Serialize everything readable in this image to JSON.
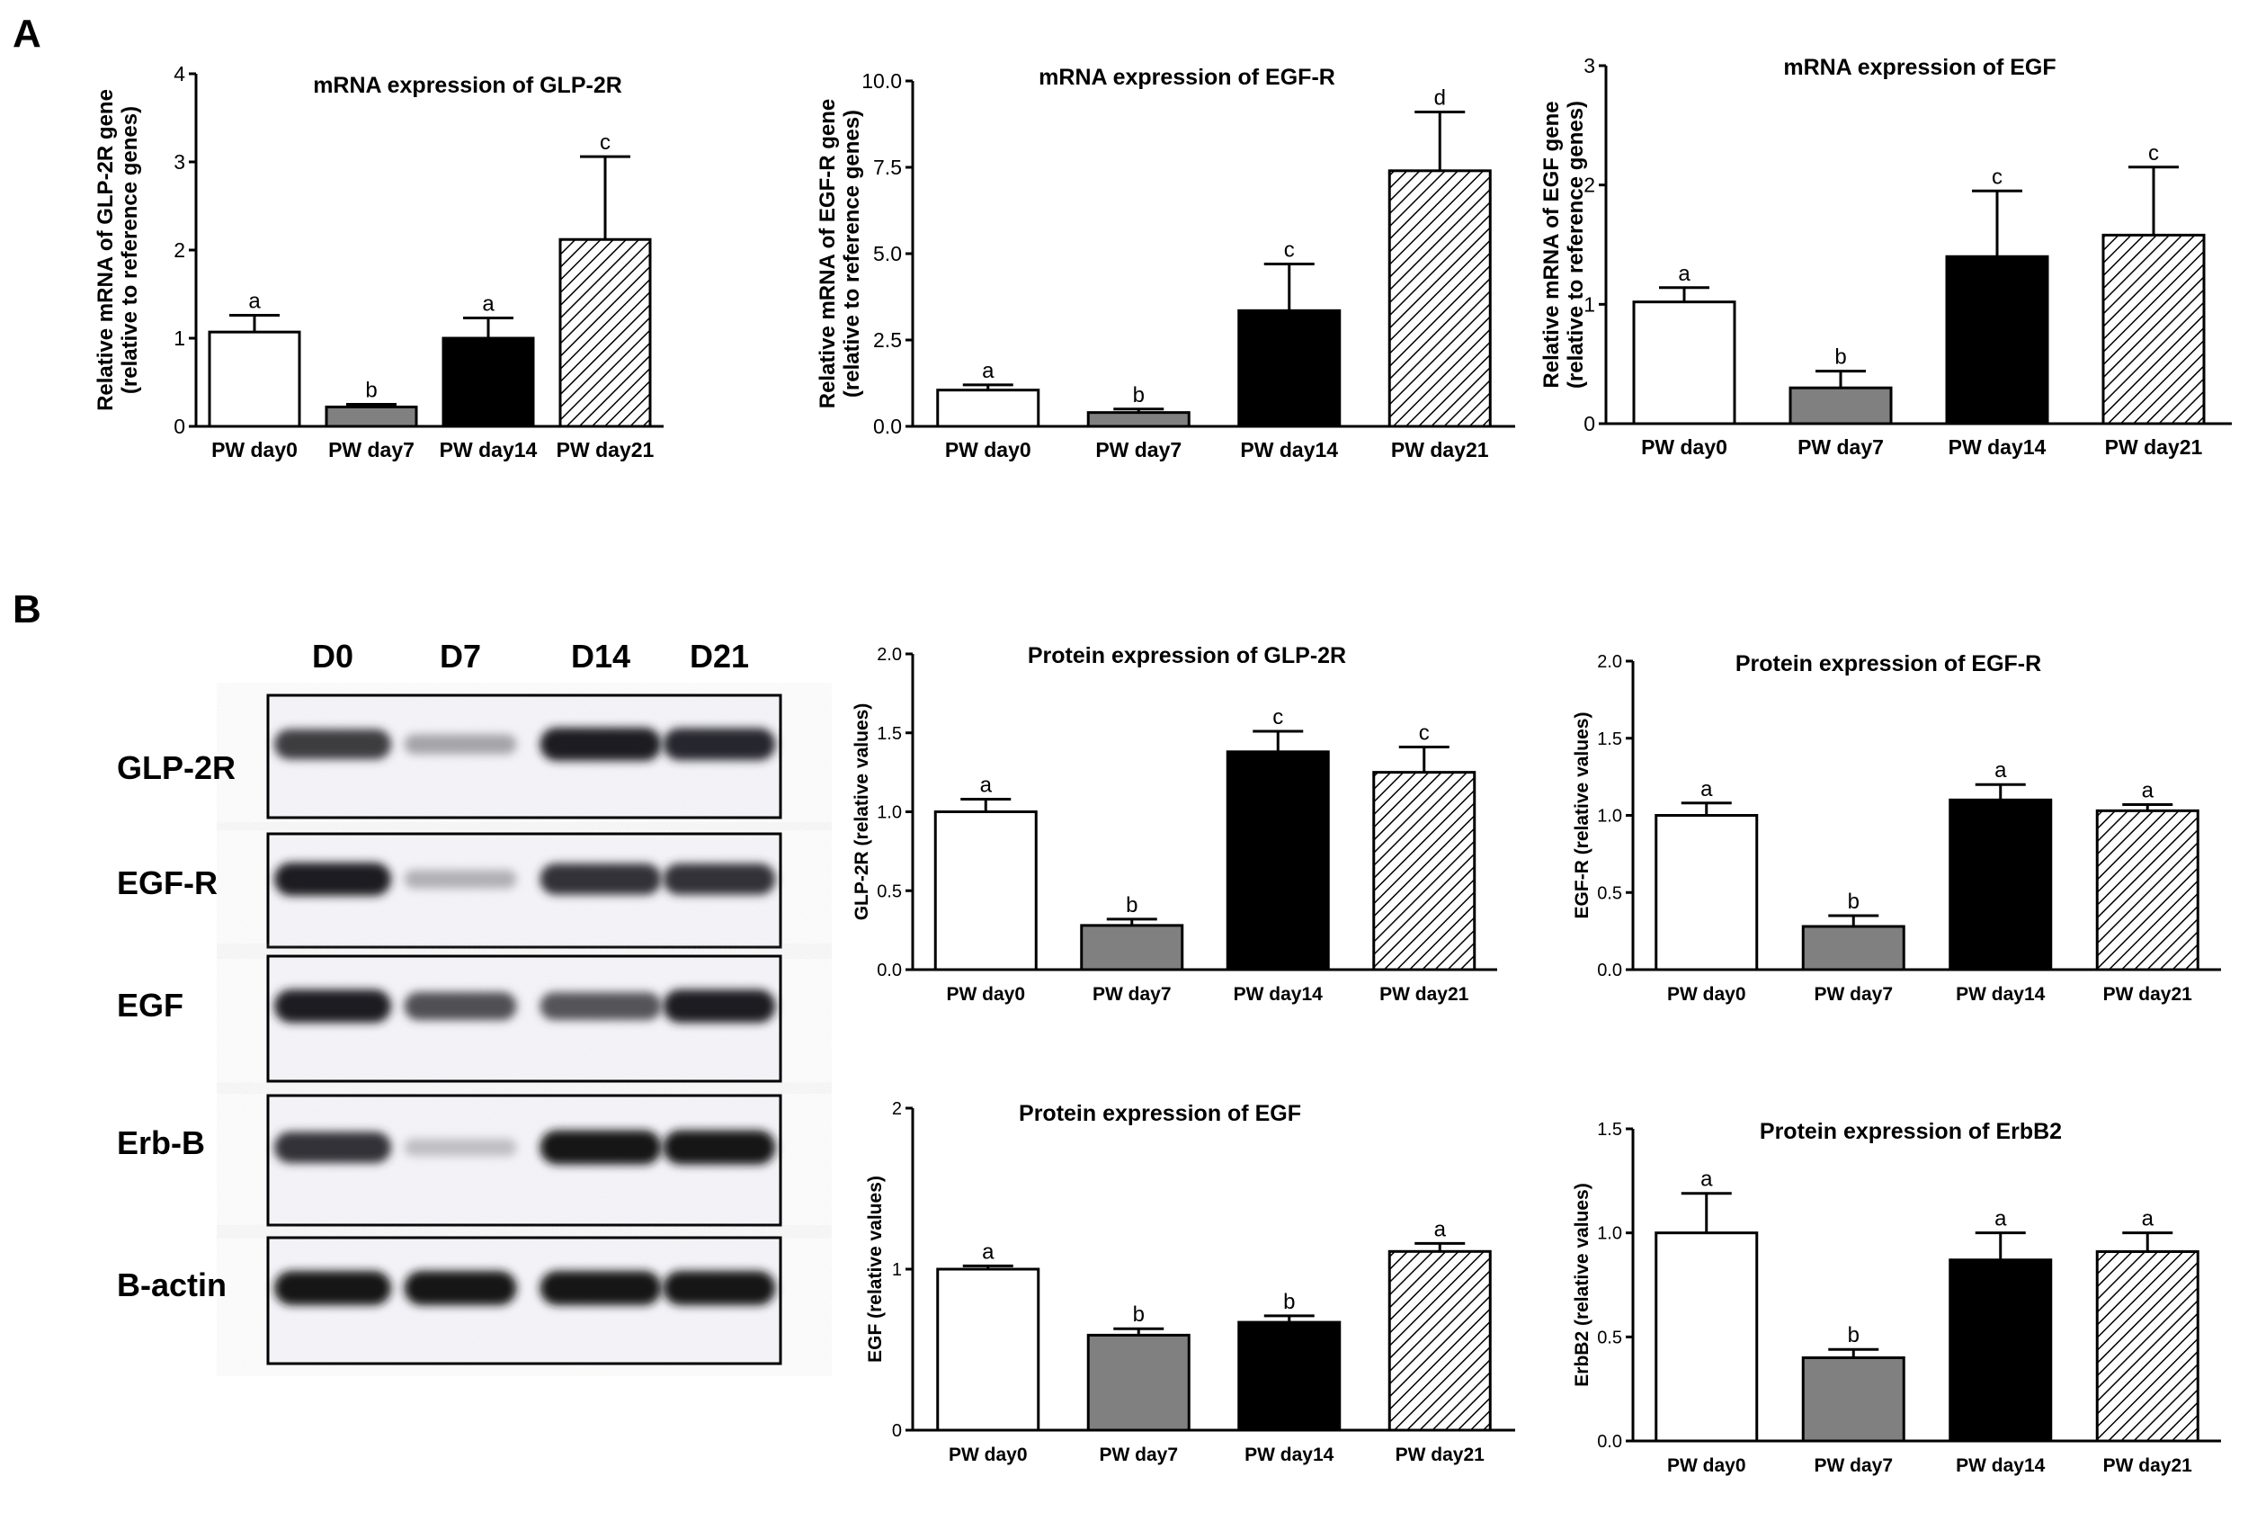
{
  "panel_labels": {
    "A": "A",
    "B": "B"
  },
  "colors": {
    "bar_fill": [
      "#ffffff",
      "#808080",
      "#000000",
      "hatch"
    ],
    "stroke": "#000000"
  },
  "blot": {
    "lanes": [
      "D0",
      "D7",
      "D14",
      "D21"
    ],
    "rows": [
      {
        "label": "GLP-2R",
        "intensity": [
          0.8,
          0.28,
          0.95,
          0.9
        ]
      },
      {
        "label": "EGF-R",
        "intensity": [
          0.95,
          0.22,
          0.85,
          0.85
        ]
      },
      {
        "label": "EGF",
        "intensity": [
          0.95,
          0.7,
          0.68,
          0.95
        ]
      },
      {
        "label": "Erb-B",
        "intensity": [
          0.85,
          0.15,
          1.0,
          1.0
        ]
      },
      {
        "label": "B-actin",
        "intensity": [
          1.0,
          1.0,
          1.0,
          1.0
        ]
      }
    ]
  },
  "chart_data": [
    {
      "type": "bar",
      "title": "mRNA expression of GLP-2R",
      "ylabel_lines": [
        "Relative mRNA of GLP-2R gene",
        "(relative to reference genes)"
      ],
      "categories": [
        "PW day0",
        "PW day7",
        "PW day14",
        "PW day21"
      ],
      "values": [
        1.07,
        0.22,
        1.0,
        2.12
      ],
      "errors": [
        0.19,
        0.03,
        0.23,
        0.94
      ],
      "letters": [
        "a",
        "b",
        "a",
        "c"
      ],
      "ylim": [
        0,
        4
      ],
      "yticks": [
        0,
        1,
        2,
        3,
        4
      ],
      "ytick_labels": [
        "0",
        "1",
        "2",
        "3",
        "4"
      ],
      "legend": "none"
    },
    {
      "type": "bar",
      "title": "mRNA expression of EGF-R",
      "ylabel_lines": [
        "Relative mRNA of EGF-R gene",
        "(relative to reference genes)"
      ],
      "categories": [
        "PW day0",
        "PW day7",
        "PW day14",
        "PW day21"
      ],
      "values": [
        1.05,
        0.4,
        3.35,
        7.4
      ],
      "errors": [
        0.15,
        0.1,
        1.35,
        1.7
      ],
      "letters": [
        "a",
        "b",
        "c",
        "d"
      ],
      "ylim": [
        0,
        10
      ],
      "yticks": [
        0,
        2.5,
        5,
        7.5,
        10
      ],
      "ytick_labels": [
        "0.0",
        "2.5",
        "5.0",
        "7.5",
        "10.0"
      ],
      "legend": "none"
    },
    {
      "type": "bar",
      "title": "mRNA expression of EGF",
      "ylabel_lines": [
        "Relative mRNA of EGF gene",
        "(relative to reference genes)"
      ],
      "categories": [
        "PW day0",
        "PW day7",
        "PW day14",
        "PW day21"
      ],
      "values": [
        1.02,
        0.3,
        1.4,
        1.58
      ],
      "errors": [
        0.12,
        0.14,
        0.55,
        0.57
      ],
      "letters": [
        "a",
        "b",
        "c",
        "c"
      ],
      "ylim": [
        0,
        3
      ],
      "yticks": [
        0,
        1,
        2,
        3
      ],
      "ytick_labels": [
        "0",
        "1",
        "2",
        "3"
      ],
      "legend": "none"
    },
    {
      "type": "bar",
      "title": "Protein expression of GLP-2R",
      "ylabel_lines": [
        "GLP-2R (relative values)"
      ],
      "categories": [
        "PW day0",
        "PW day7",
        "PW day14",
        "PW day21"
      ],
      "values": [
        1.0,
        0.28,
        1.38,
        1.25
      ],
      "errors": [
        0.08,
        0.04,
        0.13,
        0.16
      ],
      "letters": [
        "a",
        "b",
        "c",
        "c"
      ],
      "ylim": [
        0,
        2
      ],
      "yticks": [
        0,
        0.5,
        1,
        1.5,
        2
      ],
      "ytick_labels": [
        "0.0",
        "0.5",
        "1.0",
        "1.5",
        "2.0"
      ],
      "legend": "none"
    },
    {
      "type": "bar",
      "title": "Protein expression of EGF-R",
      "ylabel_lines": [
        "EGF-R (relative values)"
      ],
      "categories": [
        "PW day0",
        "PW day7",
        "PW day14",
        "PW day21"
      ],
      "values": [
        1.0,
        0.28,
        1.1,
        1.03
      ],
      "errors": [
        0.08,
        0.07,
        0.1,
        0.04
      ],
      "letters": [
        "a",
        "b",
        "a",
        "a"
      ],
      "ylim": [
        0,
        2
      ],
      "yticks": [
        0,
        0.5,
        1,
        1.5,
        2
      ],
      "ytick_labels": [
        "0.0",
        "0.5",
        "1.0",
        "1.5",
        "2.0"
      ],
      "legend": "none"
    },
    {
      "type": "bar",
      "title": "Protein expression of EGF",
      "ylabel_lines": [
        "EGF (relative values)"
      ],
      "categories": [
        "PW day0",
        "PW day7",
        "PW day14",
        "PW day21"
      ],
      "values": [
        1.0,
        0.59,
        0.67,
        1.11
      ],
      "errors": [
        0.02,
        0.04,
        0.04,
        0.05
      ],
      "letters": [
        "a",
        "b",
        "b",
        "a"
      ],
      "ylim": [
        0,
        2
      ],
      "yticks": [
        0,
        1,
        2
      ],
      "ytick_labels": [
        "0",
        "1",
        "2"
      ],
      "legend": "none"
    },
    {
      "type": "bar",
      "title": "Protein expression of ErbB2",
      "ylabel_lines": [
        "ErbB2 (relative values)"
      ],
      "categories": [
        "PW day0",
        "PW day7",
        "PW day14",
        "PW day21"
      ],
      "values": [
        1.0,
        0.4,
        0.87,
        0.91
      ],
      "errors": [
        0.19,
        0.04,
        0.13,
        0.09
      ],
      "letters": [
        "a",
        "b",
        "a",
        "a"
      ],
      "ylim": [
        0,
        1.5
      ],
      "yticks": [
        0,
        0.5,
        1,
        1.5
      ],
      "ytick_labels": [
        "0.0",
        "0.5",
        "1.0",
        "1.5"
      ],
      "legend": "none"
    }
  ]
}
